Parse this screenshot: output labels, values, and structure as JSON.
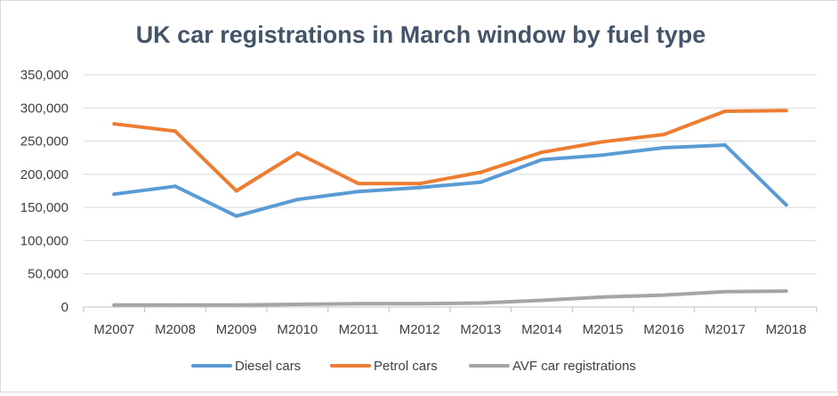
{
  "chart_data": {
    "type": "line",
    "title": "UK car registrations in March window by fuel type",
    "xlabel": "",
    "ylabel": "",
    "categories": [
      "M2007",
      "M2008",
      "M2009",
      "M2010",
      "M2011",
      "M2012",
      "M2013",
      "M2014",
      "M2015",
      "M2016",
      "M2017",
      "M2018"
    ],
    "ylim": [
      0,
      350000
    ],
    "yticks": [
      0,
      50000,
      100000,
      150000,
      200000,
      250000,
      300000,
      350000
    ],
    "ytick_labels": [
      "0",
      "50,000",
      "100,000",
      "150,000",
      "200,000",
      "250,000",
      "300,000",
      "350,000"
    ],
    "grid": true,
    "legend_position": "bottom",
    "series": [
      {
        "name": "Diesel cars",
        "color": "#5b9bd5",
        "values": [
          170000,
          182000,
          137000,
          162000,
          174000,
          180000,
          188000,
          222000,
          229000,
          240000,
          244000,
          154000
        ]
      },
      {
        "name": "Petrol cars",
        "color": "#ed7d31",
        "values": [
          276000,
          265000,
          175000,
          232000,
          186000,
          186000,
          203000,
          233000,
          249000,
          260000,
          295000,
          296000
        ]
      },
      {
        "name": "AVF car registrations",
        "color": "#a5a5a5",
        "values": [
          3000,
          3000,
          3000,
          4000,
          5000,
          5000,
          6000,
          10000,
          15000,
          18000,
          23000,
          24000
        ]
      }
    ]
  }
}
